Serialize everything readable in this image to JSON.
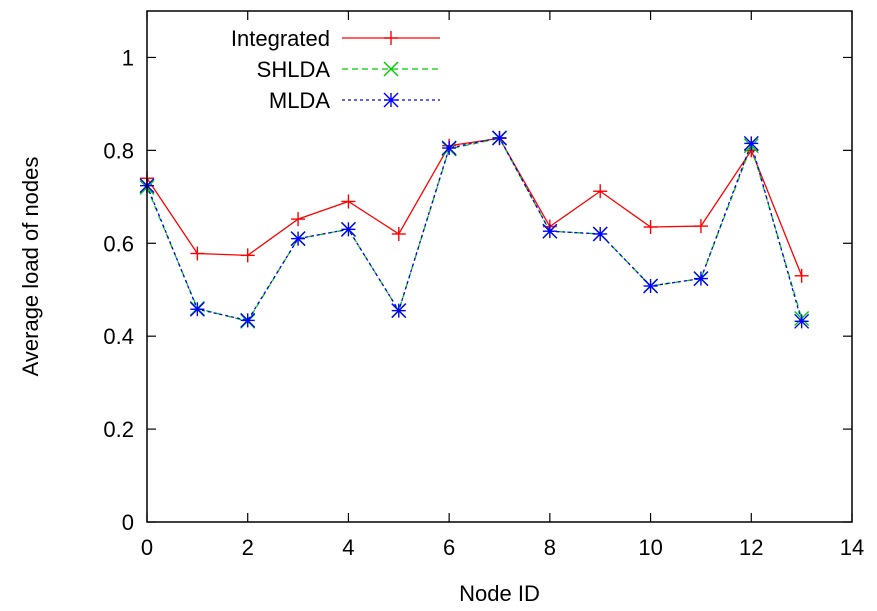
{
  "chart_data": {
    "type": "line",
    "title": "",
    "xlabel": "Node ID",
    "ylabel": "Average load of nodes",
    "xlim": [
      0,
      14
    ],
    "ylim": [
      0,
      1.1
    ],
    "x_ticks": [
      0,
      2,
      4,
      6,
      8,
      10,
      12,
      14
    ],
    "x_tick_labels": [
      "0",
      "2",
      "4",
      "6",
      "8",
      "10",
      "12",
      "14"
    ],
    "y_ticks": [
      0,
      0.2,
      0.4,
      0.6,
      0.8,
      1
    ],
    "y_tick_labels": [
      "0",
      "0.2",
      "0.4",
      "0.6",
      "0.8",
      "1"
    ],
    "grid": false,
    "legend_position": "top-left",
    "x": [
      0,
      1,
      2,
      3,
      4,
      5,
      6,
      7,
      8,
      9,
      10,
      11,
      12,
      13
    ],
    "series": [
      {
        "name": "Integrated",
        "color": "#ff0000",
        "line_style": "solid",
        "marker": "plus",
        "values": [
          0.74,
          0.578,
          0.574,
          0.652,
          0.69,
          0.62,
          0.81,
          0.826,
          0.636,
          0.712,
          0.635,
          0.637,
          0.8,
          0.53
        ]
      },
      {
        "name": "SHLDA",
        "color": "#00cc00",
        "line_style": "dashed",
        "marker": "x",
        "values": [
          0.72,
          0.46,
          0.432,
          0.61,
          0.63,
          0.455,
          0.803,
          0.826,
          0.626,
          0.62,
          0.508,
          0.524,
          0.81,
          0.438
        ]
      },
      {
        "name": "MLDA",
        "color": "#0000ff",
        "line_style": "dotted",
        "marker": "asterisk",
        "values": [
          0.724,
          0.458,
          0.434,
          0.61,
          0.63,
          0.455,
          0.805,
          0.827,
          0.626,
          0.62,
          0.508,
          0.524,
          0.815,
          0.432
        ]
      }
    ]
  }
}
